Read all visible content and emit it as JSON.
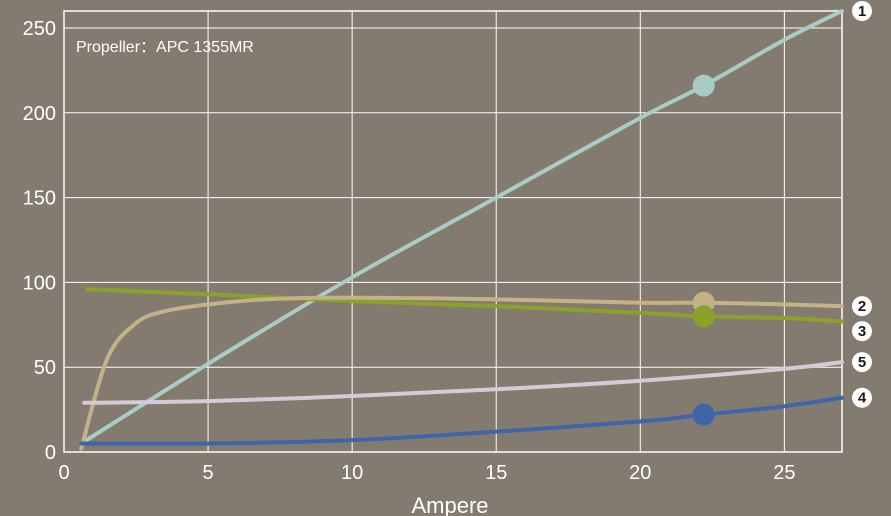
{
  "chart_data": {
    "type": "line",
    "annotation": "Propeller：APC 1355MR",
    "xlabel": "Ampere",
    "ylabel": "",
    "xlim": [
      0,
      27
    ],
    "ylim": [
      0,
      260
    ],
    "xticks": [
      0,
      5,
      10,
      15,
      20,
      25
    ],
    "yticks": [
      0,
      50,
      100,
      150,
      200,
      250
    ],
    "grid": true,
    "marker_x": 22.2,
    "series": [
      {
        "name": "1",
        "color": "#a9cdc6",
        "x": [
          0.6,
          5,
          10,
          15,
          20,
          22.2,
          25,
          27
        ],
        "y": [
          5,
          52,
          103,
          150,
          197,
          216,
          243,
          260
        ]
      },
      {
        "name": "2",
        "color": "#c4b287",
        "x": [
          0.6,
          1.5,
          2.5,
          3.5,
          5,
          7,
          10,
          15,
          20,
          22.2,
          25,
          27
        ],
        "y": [
          2,
          55,
          76,
          83,
          87,
          90,
          91,
          90,
          88,
          88,
          87,
          86
        ]
      },
      {
        "name": "3",
        "color": "#8aa12a",
        "x": [
          0.8,
          5,
          10,
          15,
          20,
          22.2,
          25,
          27
        ],
        "y": [
          96,
          93,
          89,
          86,
          82,
          80,
          79,
          77
        ]
      },
      {
        "name": "4",
        "color": "#3f64a8",
        "x": [
          0.6,
          5,
          10,
          15,
          20,
          22.2,
          25,
          27
        ],
        "y": [
          5,
          5,
          7,
          12,
          18,
          22,
          27,
          32
        ]
      },
      {
        "name": "5",
        "color": "#d4cbd8",
        "x": [
          0.7,
          5,
          10,
          15,
          20,
          25,
          27
        ],
        "y": [
          29,
          30,
          33,
          37,
          42,
          49,
          53
        ]
      }
    ]
  }
}
